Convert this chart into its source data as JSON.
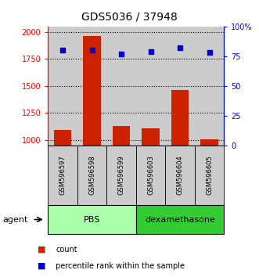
{
  "title": "GDS5036 / 37948",
  "samples": [
    "GSM596597",
    "GSM596598",
    "GSM596599",
    "GSM596603",
    "GSM596604",
    "GSM596605"
  ],
  "counts": [
    1090,
    1960,
    1130,
    1110,
    1460,
    1005
  ],
  "percentile_ranks": [
    80,
    80,
    77,
    79,
    82,
    78
  ],
  "group_pbs": {
    "label": "PBS",
    "indices": [
      0,
      1,
      2
    ],
    "color_light": "#ccffcc",
    "color_dark": "#44cc44"
  },
  "group_dex": {
    "label": "dexamethasone",
    "indices": [
      3,
      4,
      5
    ],
    "color_light": "#ccffcc",
    "color_dark": "#33bb33"
  },
  "ylim_left": [
    950,
    2050
  ],
  "ylim_right": [
    0,
    100
  ],
  "yticks_left": [
    1000,
    1250,
    1500,
    1750,
    2000
  ],
  "yticks_right": [
    0,
    25,
    50,
    75,
    100
  ],
  "bar_color": "#cc2200",
  "dot_color": "#0000cc",
  "bar_width": 0.6,
  "background_color": "#ffffff",
  "plot_bg_color": "#cccccc",
  "label_bg_color": "#cccccc",
  "pbs_color": "#aaffaa",
  "dex_color": "#33cc33",
  "legend_count_label": "count",
  "legend_percentile_label": "percentile rank within the sample",
  "agent_label": "agent"
}
